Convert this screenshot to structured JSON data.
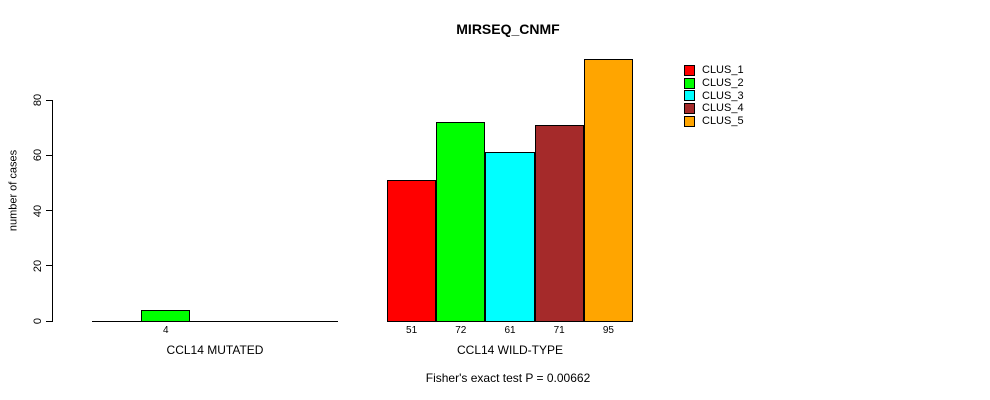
{
  "chart_data": {
    "type": "bar",
    "title": "MIRSEQ_CNMF",
    "subtitle": "Fisher's exact test P = 0.00662",
    "ylabel": "number of cases",
    "xlabel": "",
    "yticks": [
      0,
      20,
      40,
      60,
      80
    ],
    "ylim": [
      0,
      80
    ],
    "grid": false,
    "legend_position": "right-outside",
    "legend": [
      {
        "label": "CLUS_1",
        "color": "#FF0000"
      },
      {
        "label": "CLUS_2",
        "color": "#00FF00"
      },
      {
        "label": "CLUS_3",
        "color": "#00FFFF"
      },
      {
        "label": "CLUS_4",
        "color": "#A52A2A"
      },
      {
        "label": "CLUS_5",
        "color": "#FFA500"
      }
    ],
    "categories": [
      "CCL14 MUTATED",
      "CCL14 WILD-TYPE"
    ],
    "series": [
      {
        "name": "CLUS_1",
        "values": [
          0,
          51
        ]
      },
      {
        "name": "CLUS_2",
        "values": [
          4,
          72
        ]
      },
      {
        "name": "CLUS_3",
        "values": [
          0,
          61
        ]
      },
      {
        "name": "CLUS_4",
        "values": [
          0,
          71
        ]
      },
      {
        "name": "CLUS_5",
        "values": [
          0,
          95
        ]
      }
    ],
    "visible_value_labels": [
      "4",
      "51",
      "72",
      "61",
      "71",
      "95"
    ],
    "colors": {
      "background": "#FFFFFF",
      "axis": "#000000",
      "text": "#000000"
    }
  }
}
